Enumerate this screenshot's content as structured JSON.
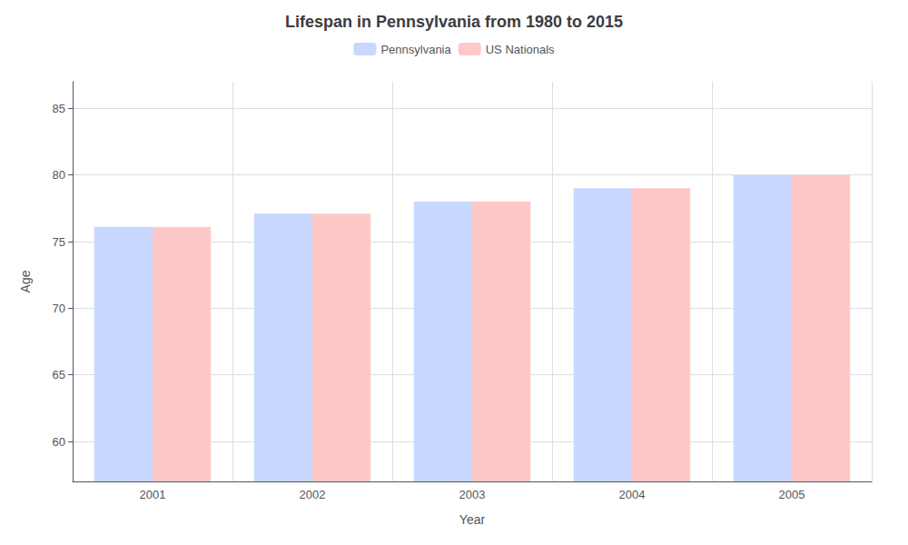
{
  "chart_data": {
    "type": "bar",
    "title": "Lifespan in Pennsylvania from 1980 to 2015",
    "x_label": "Year",
    "y_label": "Age",
    "categories": [
      "2001",
      "2002",
      "2003",
      "2004",
      "2005"
    ],
    "series": [
      {
        "name": "Pennsylvania",
        "color": "#c8d8ff",
        "values": [
          76.1,
          77.1,
          78.0,
          79.0,
          80.0
        ]
      },
      {
        "name": "US Nationals",
        "color": "#ffc8c8",
        "values": [
          76.1,
          77.1,
          78.0,
          79.0,
          80.0
        ]
      }
    ],
    "ylim": [
      57,
      87
    ],
    "yticks": [
      60,
      65,
      70,
      75,
      80,
      85
    ],
    "grid": true,
    "legend": "top"
  }
}
